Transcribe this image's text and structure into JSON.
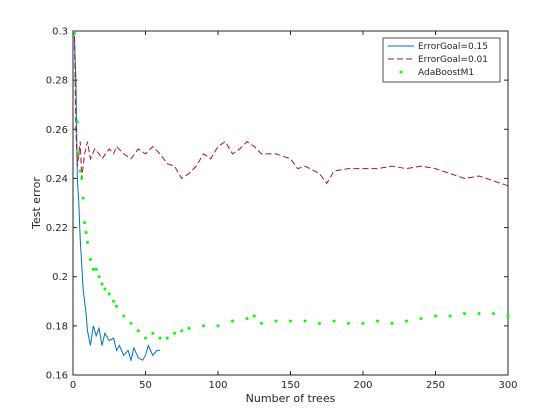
{
  "chart_data": {
    "type": "line",
    "title": "",
    "xlabel": "Number of trees",
    "ylabel": "Test error",
    "xlim": [
      0,
      300
    ],
    "ylim": [
      0.16,
      0.3
    ],
    "x_ticks": [
      0,
      50,
      100,
      150,
      200,
      250,
      300
    ],
    "x_tick_labels": [
      "0",
      "50",
      "100",
      "150",
      "200",
      "250",
      "300"
    ],
    "y_ticks": [
      0.16,
      0.18,
      0.2,
      0.22,
      0.24,
      0.26,
      0.28,
      0.3
    ],
    "y_tick_labels": [
      "0.16",
      "0.18",
      "0.2",
      "0.22",
      "0.24",
      "0.26",
      "0.28",
      "0.3"
    ],
    "grid": false,
    "legend_position": "top-right",
    "series": [
      {
        "name": "ErrorGoal=0.15",
        "style": "solid",
        "color": "#0072bd",
        "x": [
          1,
          2,
          3,
          4,
          5,
          6,
          7,
          8,
          9,
          10,
          12,
          14,
          16,
          18,
          20,
          22,
          25,
          28,
          30,
          32,
          35,
          38,
          40,
          42,
          45,
          48,
          50,
          52,
          55,
          58,
          60
        ],
        "y": [
          0.298,
          0.28,
          0.24,
          0.23,
          0.215,
          0.205,
          0.195,
          0.19,
          0.185,
          0.178,
          0.172,
          0.18,
          0.176,
          0.179,
          0.172,
          0.177,
          0.174,
          0.175,
          0.17,
          0.172,
          0.168,
          0.17,
          0.166,
          0.171,
          0.167,
          0.166,
          0.168,
          0.172,
          0.168,
          0.17,
          0.17
        ]
      },
      {
        "name": "ErrorGoal=0.01",
        "style": "dashed",
        "color": "#a2142f",
        "x": [
          1,
          2,
          3,
          4,
          5,
          6,
          8,
          10,
          12,
          15,
          18,
          20,
          25,
          28,
          30,
          35,
          40,
          45,
          50,
          55,
          60,
          65,
          70,
          75,
          80,
          85,
          90,
          95,
          100,
          105,
          110,
          115,
          120,
          125,
          130,
          140,
          150,
          155,
          160,
          170,
          175,
          180,
          190,
          200,
          210,
          220,
          230,
          240,
          250,
          260,
          270,
          280,
          290,
          300
        ],
        "y": [
          0.298,
          0.26,
          0.245,
          0.25,
          0.255,
          0.24,
          0.25,
          0.255,
          0.248,
          0.252,
          0.25,
          0.248,
          0.252,
          0.25,
          0.253,
          0.25,
          0.248,
          0.252,
          0.25,
          0.253,
          0.25,
          0.246,
          0.245,
          0.24,
          0.242,
          0.245,
          0.25,
          0.248,
          0.253,
          0.255,
          0.25,
          0.252,
          0.255,
          0.253,
          0.25,
          0.25,
          0.248,
          0.244,
          0.245,
          0.242,
          0.238,
          0.243,
          0.244,
          0.244,
          0.244,
          0.245,
          0.244,
          0.245,
          0.244,
          0.242,
          0.24,
          0.241,
          0.239,
          0.237
        ]
      },
      {
        "name": "AdaBoostM1",
        "style": "dotted",
        "color": "#00ff00",
        "x": [
          1,
          2,
          3,
          4,
          5,
          6,
          7,
          8,
          9,
          10,
          12,
          14,
          16,
          18,
          20,
          22,
          25,
          28,
          30,
          35,
          40,
          45,
          50,
          55,
          60,
          65,
          70,
          75,
          80,
          90,
          100,
          110,
          120,
          125,
          130,
          140,
          150,
          160,
          170,
          180,
          190,
          200,
          210,
          220,
          230,
          240,
          250,
          260,
          270,
          280,
          290,
          300
        ],
        "y": [
          0.299,
          0.28,
          0.263,
          0.25,
          0.243,
          0.24,
          0.232,
          0.222,
          0.218,
          0.214,
          0.207,
          0.203,
          0.203,
          0.2,
          0.197,
          0.195,
          0.193,
          0.19,
          0.188,
          0.184,
          0.181,
          0.178,
          0.175,
          0.177,
          0.175,
          0.175,
          0.177,
          0.178,
          0.179,
          0.18,
          0.18,
          0.182,
          0.183,
          0.184,
          0.181,
          0.182,
          0.182,
          0.182,
          0.181,
          0.182,
          0.181,
          0.181,
          0.182,
          0.181,
          0.182,
          0.183,
          0.184,
          0.184,
          0.185,
          0.185,
          0.185,
          0.184
        ]
      }
    ]
  }
}
